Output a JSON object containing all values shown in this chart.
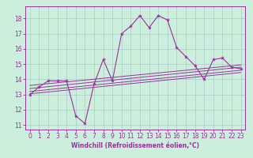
{
  "xlabel": "Windchill (Refroidissement éolien,°C)",
  "bg_color": "#cceedd",
  "line_color": "#993399",
  "grid_color": "#aacccc",
  "xlim": [
    -0.5,
    23.5
  ],
  "ylim": [
    10.7,
    18.8
  ],
  "yticks": [
    11,
    12,
    13,
    14,
    15,
    16,
    17,
    18
  ],
  "xticks": [
    0,
    1,
    2,
    3,
    4,
    5,
    6,
    7,
    8,
    9,
    10,
    11,
    12,
    13,
    14,
    15,
    16,
    17,
    18,
    19,
    20,
    21,
    22,
    23
  ],
  "main_line_x": [
    0,
    1,
    2,
    3,
    4,
    5,
    6,
    7,
    8,
    9,
    10,
    11,
    12,
    13,
    14,
    15,
    16,
    17,
    18,
    19,
    20,
    21,
    22,
    23
  ],
  "main_line_y": [
    13.0,
    13.5,
    13.9,
    13.9,
    13.9,
    11.6,
    11.1,
    13.7,
    15.3,
    13.9,
    17.0,
    17.5,
    18.2,
    17.4,
    18.2,
    17.9,
    16.1,
    15.5,
    14.9,
    14.0,
    15.3,
    15.4,
    14.8,
    14.7
  ],
  "reg_lines": [
    [
      [
        0,
        23
      ],
      [
        13.05,
        14.45
      ]
    ],
    [
      [
        0,
        23
      ],
      [
        13.2,
        14.6
      ]
    ],
    [
      [
        0,
        23
      ],
      [
        13.4,
        14.8
      ]
    ],
    [
      [
        0,
        23
      ],
      [
        13.6,
        14.95
      ]
    ]
  ],
  "tick_fontsize": 5.5,
  "xlabel_fontsize": 5.5
}
